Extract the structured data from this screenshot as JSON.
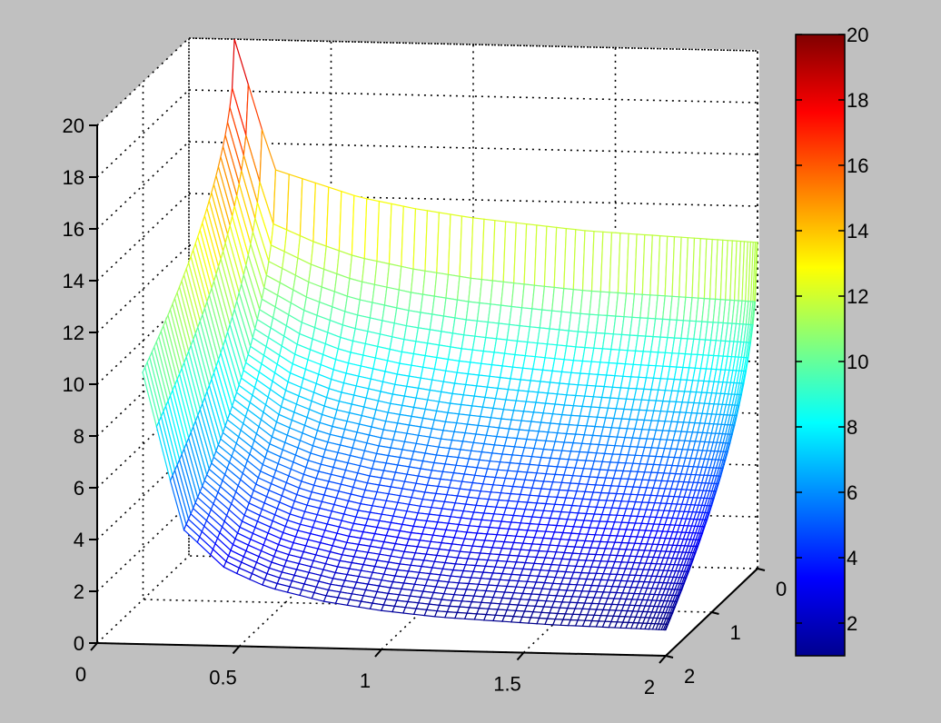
{
  "figure": {
    "background": "#c0c0c0",
    "axes_background": "#ffffff"
  },
  "chart_data": {
    "type": "surface",
    "title": "",
    "xlabel": "",
    "ylabel": "",
    "zlabel": "",
    "xlim": [
      0,
      2
    ],
    "ylim": [
      0,
      2
    ],
    "zlim": [
      0,
      20
    ],
    "grid": true,
    "colormap": "jet",
    "x_ticks": [
      "0",
      "0.5",
      "1",
      "1.5",
      "2"
    ],
    "y_ticks": [
      "0",
      "1",
      "2"
    ],
    "z_ticks": [
      "0",
      "2",
      "4",
      "6",
      "8",
      "10",
      "12",
      "14",
      "16",
      "18",
      "20"
    ],
    "colorbar": {
      "ticks": [
        "2",
        "4",
        "6",
        "8",
        "10",
        "12",
        "14",
        "16",
        "18",
        "20"
      ],
      "range": [
        1,
        20
      ]
    },
    "surface_profile": {
      "x": [
        0.16,
        0.3,
        0.45,
        0.6,
        0.8,
        1.0,
        1.2,
        1.4,
        1.6,
        1.8,
        2.0
      ],
      "z_near_y0": [
        20,
        15,
        14.5,
        14,
        13.6,
        13.3,
        13.1,
        12.9,
        12.8,
        12.7,
        12.6
      ],
      "z_near_y2": [
        10.5,
        4.5,
        3.0,
        2.3,
        1.8,
        1.5,
        1.3,
        1.2,
        1.1,
        1.05,
        1.0
      ]
    }
  }
}
